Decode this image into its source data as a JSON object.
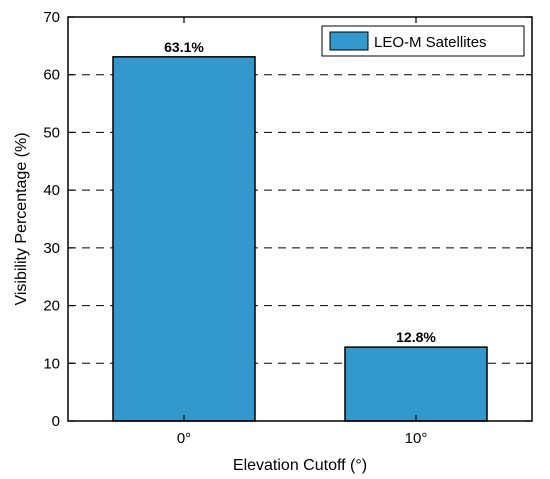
{
  "chart_data": {
    "type": "bar",
    "categories": [
      "0°",
      "10°"
    ],
    "series": [
      {
        "name": "LEO-M Satellites",
        "values": [
          63.1,
          12.8
        ],
        "color": "#3399cc"
      }
    ],
    "data_labels": [
      "63.1%",
      "12.8%"
    ],
    "xlabel": "Elevation Cutoff (°)",
    "ylabel": "Visibility Percentage (%)",
    "ylim": [
      0,
      70
    ],
    "yticks": [
      0,
      10,
      20,
      30,
      40,
      50,
      60,
      70
    ],
    "grid": "horizontal-dashed",
    "legend_position": "top-right"
  }
}
